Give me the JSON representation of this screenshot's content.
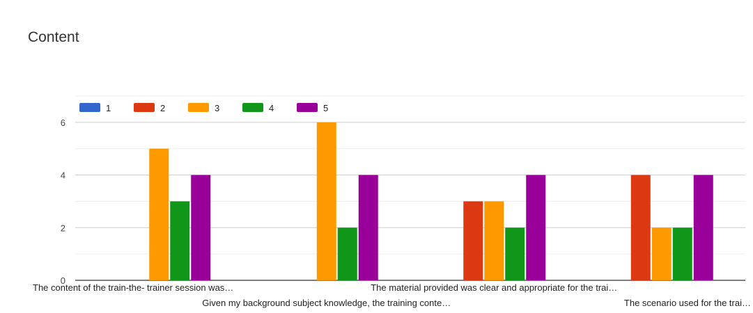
{
  "chart_data": {
    "type": "bar",
    "title": "Content",
    "xlabel": "",
    "ylabel": "",
    "ylim": [
      0,
      7
    ],
    "yticks": [
      0,
      2,
      4,
      6
    ],
    "grid": true,
    "legend_position": "top-left",
    "categories": [
      "The content of the train-the- trainer session was…",
      "Given my background subject knowledge, the training conte…",
      "The material provided was clear and appropriate for the trai…",
      "The scenario used for the trai…"
    ],
    "category_rows": [
      0,
      1,
      0,
      1
    ],
    "series": [
      {
        "name": "1",
        "color": "#3366cc",
        "values": [
          0,
          0,
          0,
          0
        ]
      },
      {
        "name": "2",
        "color": "#dc3912",
        "values": [
          0,
          0,
          3,
          4
        ]
      },
      {
        "name": "3",
        "color": "#ff9900",
        "values": [
          5,
          6,
          3,
          2
        ]
      },
      {
        "name": "4",
        "color": "#109618",
        "values": [
          3,
          2,
          2,
          2
        ]
      },
      {
        "name": "5",
        "color": "#990099",
        "values": [
          4,
          4,
          4,
          4
        ]
      }
    ]
  }
}
